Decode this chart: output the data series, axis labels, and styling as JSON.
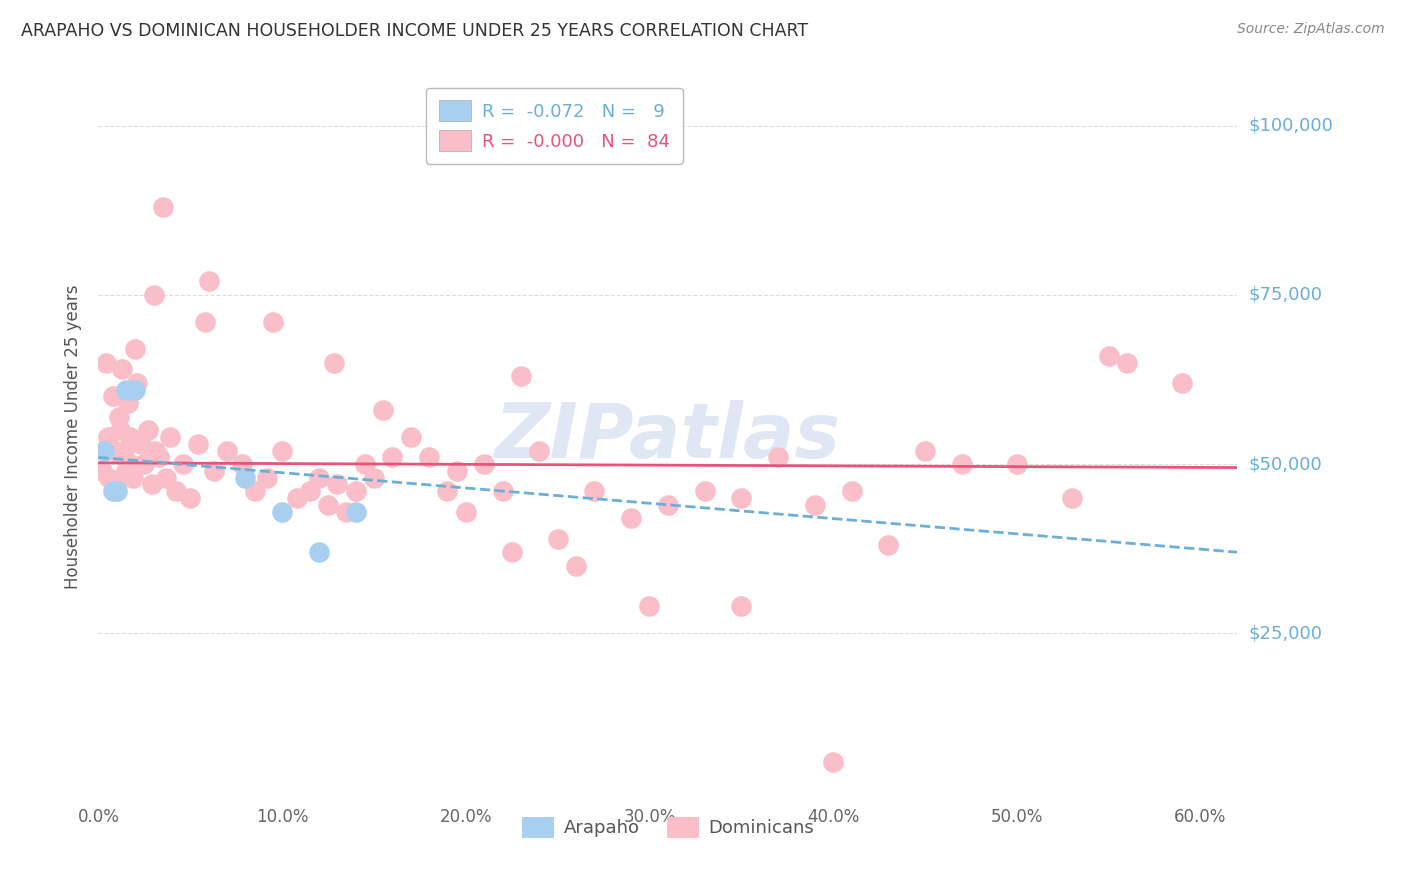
{
  "title": "ARAPAHO VS DOMINICAN HOUSEHOLDER INCOME UNDER 25 YEARS CORRELATION CHART",
  "source": "Source: ZipAtlas.com",
  "ylabel": "Householder Income Under 25 years",
  "xlabel_ticks": [
    "0.0%",
    "10.0%",
    "20.0%",
    "30.0%",
    "40.0%",
    "50.0%",
    "60.0%"
  ],
  "xlabel_vals": [
    0.0,
    10.0,
    20.0,
    30.0,
    40.0,
    50.0,
    60.0
  ],
  "ytick_vals": [
    0,
    25000,
    50000,
    75000,
    100000
  ],
  "xlim": [
    0,
    62
  ],
  "ylim": [
    0,
    108000
  ],
  "arapaho_color": "#A8CFF0",
  "dominican_color": "#F9BEC8",
  "arapaho_line_color": "#6BAED6",
  "dominican_line_color": "#E8537A",
  "legend_R_arapaho": "-0.072",
  "legend_N_arapaho": "9",
  "legend_R_dominican": "-0.000",
  "legend_N_dominican": "84",
  "watermark": "ZIPatlas",
  "watermark_color": "#C8D8EB",
  "background_color": "#FFFFFF",
  "grid_color": "#DDDDDD",
  "arapaho_x": [
    0.3,
    0.8,
    1.0,
    1.5,
    2.0,
    8.0,
    10.0,
    12.0,
    14.0
  ],
  "arapaho_y": [
    52000,
    46000,
    46000,
    61000,
    61000,
    48000,
    43000,
    37000,
    43000
  ],
  "dominican_x": [
    0.2,
    0.4,
    0.5,
    0.6,
    0.8,
    0.9,
    1.0,
    1.1,
    1.2,
    1.3,
    1.4,
    1.5,
    1.6,
    1.7,
    1.8,
    1.9,
    2.0,
    2.1,
    2.3,
    2.5,
    2.7,
    2.9,
    3.1,
    3.3,
    3.5,
    3.7,
    3.9,
    4.2,
    4.6,
    5.0,
    5.4,
    5.8,
    6.3,
    7.0,
    7.8,
    8.5,
    9.2,
    10.0,
    10.8,
    11.5,
    12.0,
    12.5,
    13.0,
    13.5,
    14.0,
    14.5,
    15.0,
    16.0,
    17.0,
    18.0,
    19.0,
    20.0,
    21.0,
    22.0,
    23.0,
    24.0,
    25.0,
    27.0,
    29.0,
    31.0,
    33.0,
    35.0,
    37.0,
    39.0,
    41.0,
    43.0,
    45.0,
    47.0,
    50.0,
    53.0,
    56.0,
    59.0,
    3.0,
    6.0,
    9.5,
    12.8,
    15.5,
    19.5,
    22.5,
    26.0,
    30.0,
    35.0,
    40.0,
    55.0
  ],
  "dominican_y": [
    49000,
    65000,
    54000,
    48000,
    60000,
    52000,
    47000,
    57000,
    55000,
    64000,
    52000,
    49000,
    59000,
    54000,
    50000,
    48000,
    67000,
    62000,
    53000,
    50000,
    55000,
    47000,
    52000,
    51000,
    88000,
    48000,
    54000,
    46000,
    50000,
    45000,
    53000,
    71000,
    49000,
    52000,
    50000,
    46000,
    48000,
    52000,
    45000,
    46000,
    48000,
    44000,
    47000,
    43000,
    46000,
    50000,
    48000,
    51000,
    54000,
    51000,
    46000,
    43000,
    50000,
    46000,
    63000,
    52000,
    39000,
    46000,
    42000,
    44000,
    46000,
    45000,
    51000,
    44000,
    46000,
    38000,
    52000,
    50000,
    50000,
    45000,
    65000,
    62000,
    75000,
    77000,
    71000,
    65000,
    58000,
    49000,
    37000,
    35000,
    29000,
    29000,
    6000,
    66000
  ],
  "dominican_trend_x": [
    0,
    62
  ],
  "dominican_trend_y": [
    50200,
    49500
  ],
  "arapaho_trend_x": [
    0,
    62
  ],
  "arapaho_trend_y": [
    51000,
    37000
  ]
}
